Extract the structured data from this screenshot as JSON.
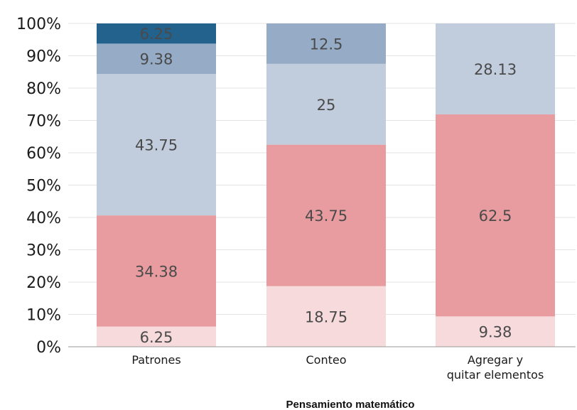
{
  "chart_data": {
    "type": "bar",
    "stacked": true,
    "percent": true,
    "xlabel": "Pensamiento matemático",
    "ylabel": "",
    "ylim": [
      0,
      100
    ],
    "yticks": [
      "0%",
      "10%",
      "20%",
      "30%",
      "40%",
      "50%",
      "60%",
      "70%",
      "80%",
      "90%",
      "100%"
    ],
    "grid": true,
    "categories": [
      {
        "name": "Patrones",
        "lines": [
          "Patrones"
        ]
      },
      {
        "name": "Conteo",
        "lines": [
          "Conteo"
        ]
      },
      {
        "name": "Agregar y quitar elementos",
        "lines": [
          "Agregar y",
          "quitar elementos"
        ]
      }
    ],
    "series": [
      {
        "color": "#f6dadc",
        "values": [
          6.25,
          18.75,
          9.38
        ],
        "labels": [
          "6.25",
          "18.75",
          "9.38"
        ]
      },
      {
        "color": "#e89c9f",
        "values": [
          34.38,
          43.75,
          62.5
        ],
        "labels": [
          "34.38",
          "43.75",
          "62.5"
        ]
      },
      {
        "color": "#c1ccdc",
        "values": [
          43.75,
          25,
          28.13
        ],
        "labels": [
          "43.75",
          "25",
          "28.13"
        ]
      },
      {
        "color": "#95abc6",
        "values": [
          9.38,
          12.5,
          0
        ],
        "labels": [
          "9.38",
          "12.5",
          ""
        ]
      },
      {
        "color": "#23628c",
        "values": [
          6.25,
          0,
          0
        ],
        "labels": [
          "6.25",
          "",
          ""
        ],
        "label_color": "#ffffff"
      }
    ]
  }
}
